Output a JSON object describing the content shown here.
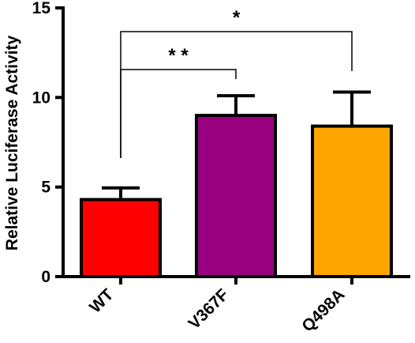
{
  "chart_data": {
    "type": "bar",
    "categories": [
      "WT",
      "V367F",
      "Q498A"
    ],
    "values": [
      4.3,
      9.0,
      8.4
    ],
    "errors": [
      0.65,
      1.1,
      1.9
    ],
    "colors": [
      "#ff0000",
      "#990080",
      "#ffa500"
    ],
    "title": "",
    "xlabel": "",
    "ylabel": "Relative Luciferase Activity",
    "ylim": [
      0,
      15
    ],
    "yticks": [
      "0",
      "5",
      "10",
      "15"
    ],
    "grid": false,
    "significance": [
      {
        "from": "WT",
        "to": "V367F",
        "label": "* *"
      },
      {
        "from": "WT",
        "to": "Q498A",
        "label": "*"
      }
    ]
  }
}
